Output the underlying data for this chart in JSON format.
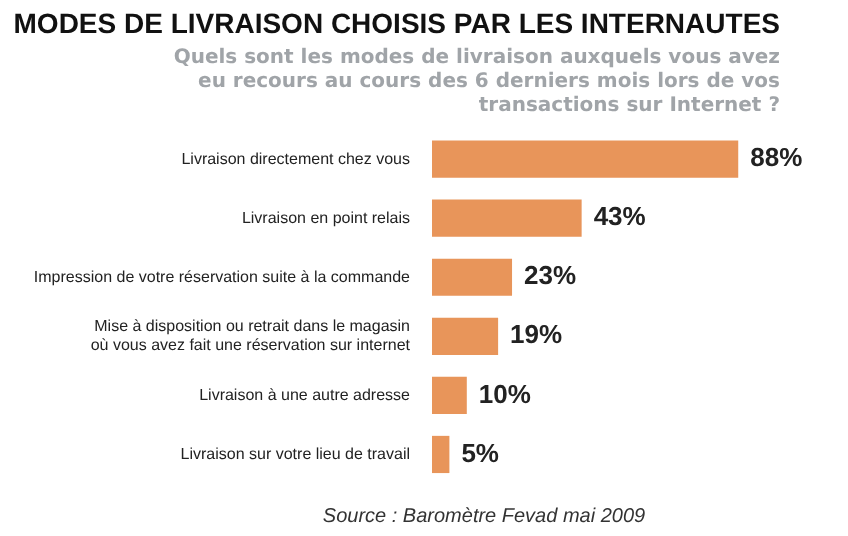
{
  "chart_data": {
    "type": "bar",
    "orientation": "horizontal",
    "title": "MODES DE LIVRAISON CHOISIS PAR LES INTERNAUTES",
    "subtitle": "Quels sont les modes de livraison auxquels vous avez eu recours au cours des 6 derniers mois lors de vos transactions sur Internet ?",
    "categories": [
      "Livraison directement chez vous",
      "Livraison en point relais",
      "Impression de votre réservation suite à la commande",
      "Mise à disposition ou retrait dans le magasin où vous avez fait une réservation sur internet",
      "Livraison à une autre adresse",
      "Livraison sur votre lieu de travail"
    ],
    "values": [
      88,
      43,
      23,
      19,
      10,
      5
    ],
    "value_labels": [
      "88%",
      "43%",
      "23%",
      "19%",
      "10%",
      "5%"
    ],
    "color": "#e8955a",
    "annotations": [
      "Source : Baromètre Fevad mai 2009"
    ]
  }
}
